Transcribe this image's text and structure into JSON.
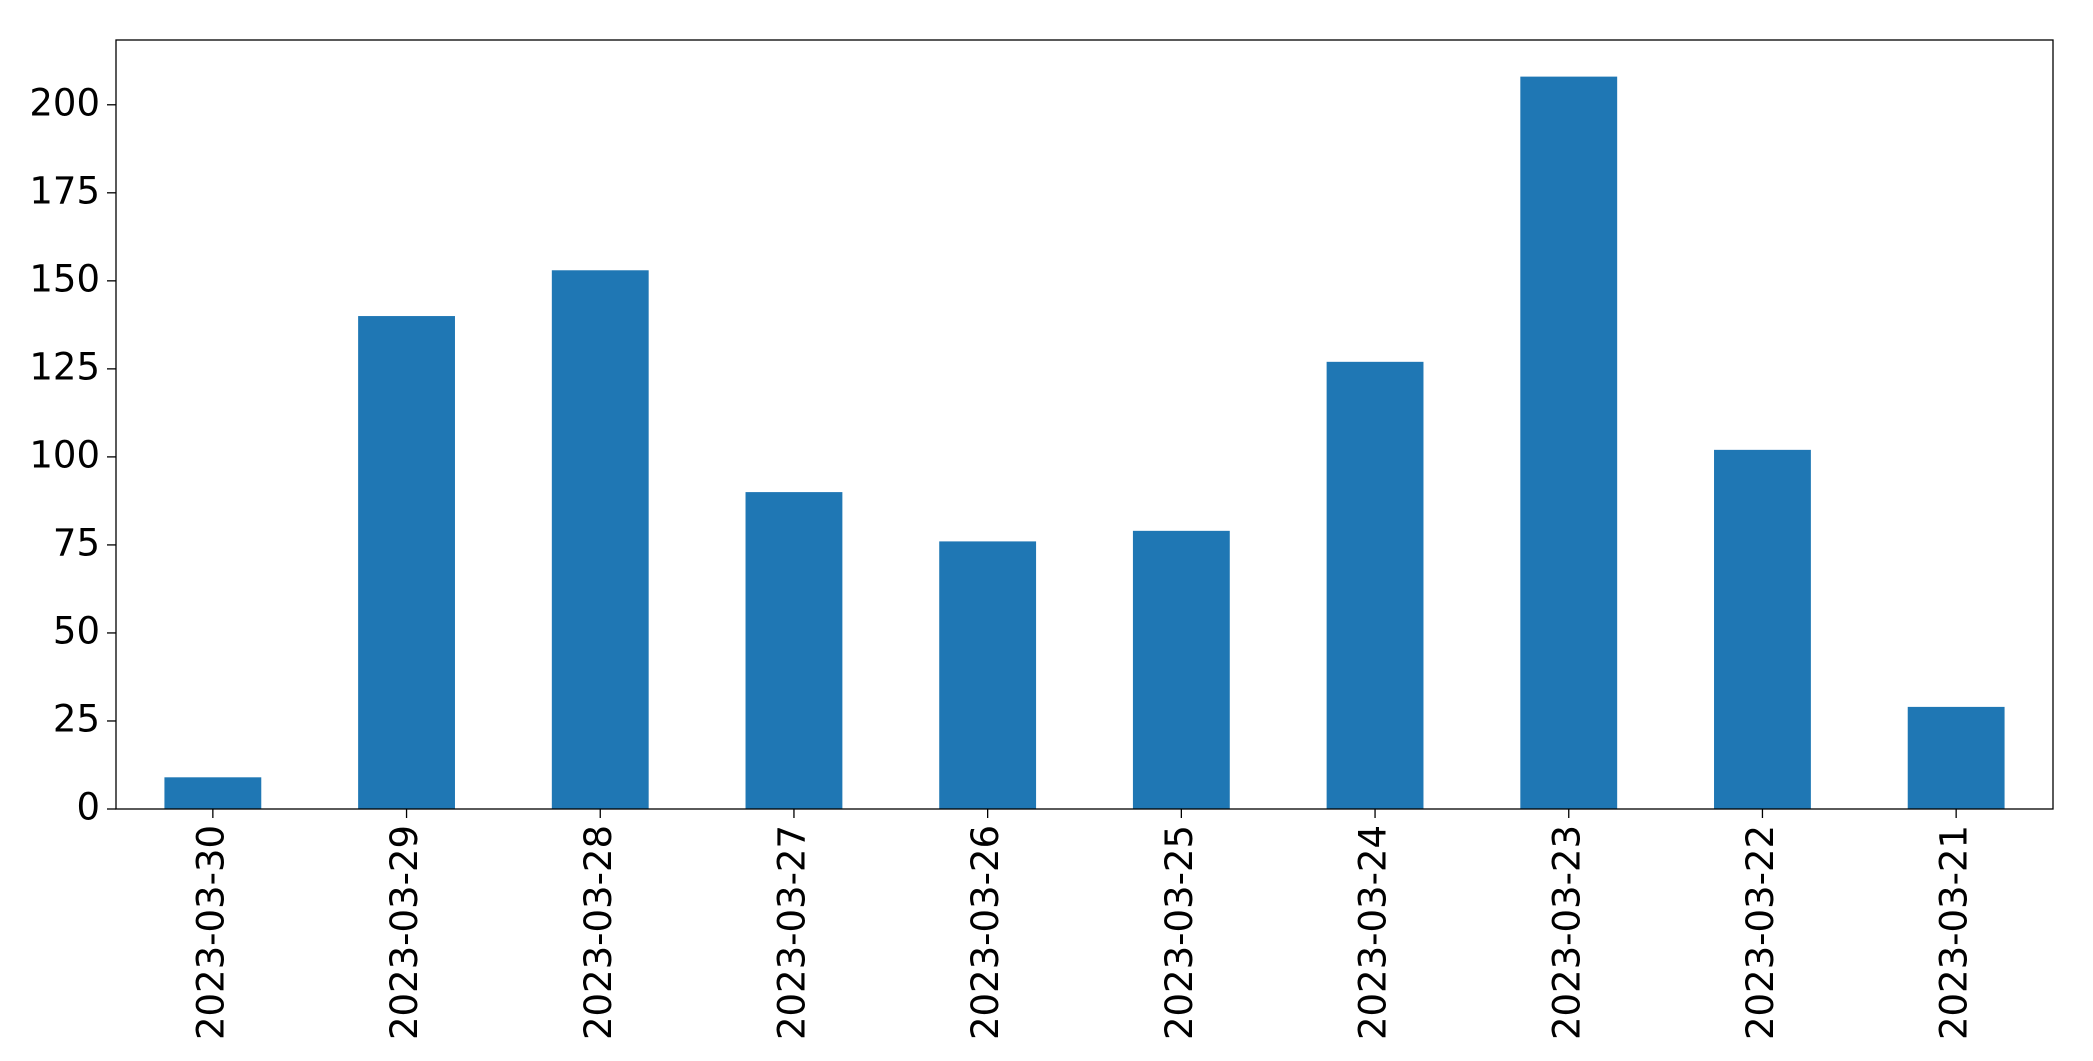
{
  "chart_data": {
    "type": "bar",
    "categories": [
      "2023-03-30",
      "2023-03-29",
      "2023-03-28",
      "2023-03-27",
      "2023-03-26",
      "2023-03-25",
      "2023-03-24",
      "2023-03-23",
      "2023-03-22",
      "2023-03-21"
    ],
    "values": [
      9,
      140,
      153,
      90,
      76,
      79,
      127,
      208,
      102,
      29
    ],
    "color": "#1f77b4",
    "ylim": [
      0,
      218.4
    ],
    "yticks": [
      0,
      25,
      50,
      75,
      100,
      125,
      150,
      175,
      200
    ],
    "grid": false
  }
}
